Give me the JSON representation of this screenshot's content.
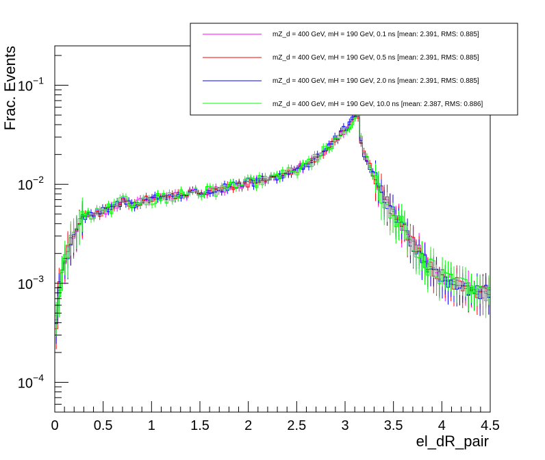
{
  "chart_data": {
    "type": "line",
    "xlabel": "el_dR_pair",
    "ylabel": "Frac. Events",
    "xlim": [
      0,
      4.5
    ],
    "ylim": [
      5e-05,
      0.25
    ],
    "yscale": "log",
    "grid": false,
    "legend_position": "top-right",
    "x_ticks": [
      "0",
      "0.5",
      "1",
      "1.5",
      "2",
      "2.5",
      "3",
      "3.5",
      "4",
      "4.5"
    ],
    "y_ticks": [
      {
        "value": 0.0001,
        "base": "10",
        "exp": "−4"
      },
      {
        "value": 0.001,
        "base": "10",
        "exp": "−3"
      },
      {
        "value": 0.01,
        "base": "10",
        "exp": "−2"
      },
      {
        "value": 0.1,
        "base": "10",
        "exp": "−1"
      }
    ],
    "bin_width": 0.03,
    "series_names": [
      "mZ_d = 400 GeV, mH = 190 GeV, 0.1 ns [mean: 2.391, RMS: 0.885]",
      "mZ_d = 400 GeV, mH = 190 GeV, 0.5 ns [mean: 2.391, RMS: 0.885]",
      "mZ_d = 400 GeV, mH = 190 GeV, 2.0 ns [mean: 2.391, RMS: 0.885]",
      "mZ_d = 400 GeV, mH = 190 GeV, 10.0 ns [mean: 2.387, RMS: 0.886]"
    ],
    "series_colors": [
      "#ff00ff",
      "#ff0000",
      "#0000ff",
      "#00ff00"
    ],
    "reference_shape": [
      [
        0.0,
        0.0002
      ],
      [
        0.03,
        0.0008
      ],
      [
        0.06,
        0.0011
      ],
      [
        0.1,
        0.0016
      ],
      [
        0.15,
        0.0024
      ],
      [
        0.2,
        0.0032
      ],
      [
        0.25,
        0.0043
      ],
      [
        0.3,
        0.0046
      ],
      [
        0.4,
        0.0049
      ],
      [
        0.5,
        0.0053
      ],
      [
        0.6,
        0.0058
      ],
      [
        0.7,
        0.0068
      ],
      [
        0.8,
        0.0063
      ],
      [
        0.9,
        0.0068
      ],
      [
        1.0,
        0.0072
      ],
      [
        1.2,
        0.0076
      ],
      [
        1.4,
        0.0081
      ],
      [
        1.6,
        0.0084
      ],
      [
        1.8,
        0.0093
      ],
      [
        2.0,
        0.0103
      ],
      [
        2.2,
        0.0113
      ],
      [
        2.4,
        0.0128
      ],
      [
        2.6,
        0.0158
      ],
      [
        2.7,
        0.0185
      ],
      [
        2.8,
        0.0225
      ],
      [
        2.9,
        0.0285
      ],
      [
        3.0,
        0.036
      ],
      [
        3.08,
        0.044
      ],
      [
        3.14,
        0.05
      ],
      [
        3.16,
        0.028
      ],
      [
        3.2,
        0.02
      ],
      [
        3.25,
        0.0155
      ],
      [
        3.3,
        0.0118
      ],
      [
        3.35,
        0.0093
      ],
      [
        3.4,
        0.0074
      ],
      [
        3.5,
        0.0052
      ],
      [
        3.6,
        0.0036
      ],
      [
        3.7,
        0.0026
      ],
      [
        3.8,
        0.0019
      ],
      [
        3.9,
        0.0014
      ],
      [
        4.0,
        0.0012
      ],
      [
        4.1,
        0.00105
      ],
      [
        4.2,
        0.00095
      ],
      [
        4.3,
        0.00088
      ],
      [
        4.4,
        0.00082
      ],
      [
        4.5,
        0.00078
      ]
    ],
    "noise_level": [
      0.09,
      0.09,
      0.11,
      0.14
    ]
  }
}
